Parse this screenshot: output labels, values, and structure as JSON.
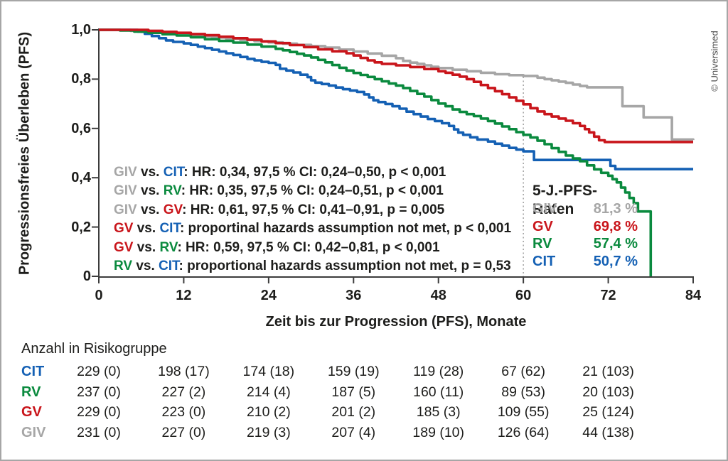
{
  "copyright": "© Universimed",
  "colors": {
    "giv": "#a6a6a6",
    "gv": "#c9151b",
    "rv": "#0a8a3e",
    "cit": "#1460b4",
    "axis": "#3c3c3c",
    "text": "#1d1d1b",
    "dotted_line": "#999999"
  },
  "stats": [
    {
      "g1": "GIV",
      "c1": "giv",
      "g2": "CIT",
      "c2": "cit",
      "rest": "HR: 0,34, 97,5 % CI: 0,24–0,50, p < 0,001"
    },
    {
      "g1": "GIV",
      "c1": "giv",
      "g2": "RV",
      "c2": "rv",
      "rest": "HR: 0,35, 97,5 % CI: 0,24–0,51, p < 0,001"
    },
    {
      "g1": "GIV",
      "c1": "giv",
      "g2": "GV",
      "c2": "gv",
      "rest": "HR: 0,61, 97,5 % CI: 0,41–0,91, p = 0,005"
    },
    {
      "g1": "GV",
      "c1": "gv",
      "g2": "CIT",
      "c2": "cit",
      "rest": "proportinal hazards assumption not met, p < 0,001"
    },
    {
      "g1": "GV",
      "c1": "gv",
      "g2": "RV",
      "c2": "rv",
      "rest": "HR: 0,59, 97,5 % CI: 0,42–0,81, p < 0,001"
    },
    {
      "g1": "RV",
      "c1": "rv",
      "g2": "CIT",
      "c2": "cit",
      "rest": "proportional hazards assumption not met, p = 0,53"
    }
  ],
  "five_year_rates": {
    "title": "5-J.-PFS-Raten",
    "rows": [
      {
        "label": "GIV",
        "color": "giv",
        "value": "81,3 %"
      },
      {
        "label": "GV",
        "color": "gv",
        "value": "69,8 %"
      },
      {
        "label": "RV",
        "color": "rv",
        "value": "57,4 %"
      },
      {
        "label": "CIT",
        "color": "cit",
        "value": "50,7 %"
      }
    ]
  },
  "risk_table": {
    "title": "Anzahl in Risikogruppe",
    "rows": [
      {
        "label": "CIT",
        "color": "cit",
        "values": [
          "229 (0)",
          "198 (17)",
          "174 (18)",
          "159 (19)",
          "119 (28)",
          "67 (62)",
          "21 (103)"
        ]
      },
      {
        "label": "RV",
        "color": "rv",
        "values": [
          "237 (0)",
          "227 (2)",
          "214 (4)",
          "187 (5)",
          "160 (11)",
          "89 (53)",
          "20 (103)"
        ]
      },
      {
        "label": "GV",
        "color": "gv",
        "values": [
          "229 (0)",
          "223 (0)",
          "210 (2)",
          "201 (2)",
          "185 (3)",
          "109 (55)",
          "25 (124)"
        ]
      },
      {
        "label": "GIV",
        "color": "giv",
        "values": [
          "231 (0)",
          "227 (0)",
          "219 (3)",
          "207 (4)",
          "189 (10)",
          "126 (64)",
          "44 (138)"
        ]
      }
    ]
  },
  "chart_data": {
    "type": "line",
    "subtype": "kaplan-meier-step",
    "title": "",
    "xlabel": "Zeit bis zur Progression (PFS), Monate",
    "ylabel": "Progressionsfreies Überleben (PFS)",
    "xlim": [
      0,
      84
    ],
    "ylim": [
      0,
      1.0
    ],
    "grid": false,
    "reference_line_x": 60,
    "xticks": [
      {
        "m": 0,
        "label": "0"
      },
      {
        "m": 12,
        "label": "12"
      },
      {
        "m": 24,
        "label": "24"
      },
      {
        "m": 36,
        "label": "36"
      },
      {
        "m": 48,
        "label": "48"
      },
      {
        "m": 60,
        "label": "60"
      },
      {
        "m": 72,
        "label": "72"
      },
      {
        "m": 84,
        "label": "84"
      }
    ],
    "yticks": [
      {
        "v": 0.0,
        "label": "0"
      },
      {
        "v": 0.2,
        "label": "0,2"
      },
      {
        "v": 0.4,
        "label": "0,4"
      },
      {
        "v": 0.6,
        "label": "0,6"
      },
      {
        "v": 0.8,
        "label": "0,8"
      },
      {
        "v": 1.0,
        "label": "1,0"
      }
    ],
    "series": [
      {
        "name": "GIV",
        "color": "giv",
        "end_month": 84,
        "points": [
          [
            0,
            1.0
          ],
          [
            4.5,
            0.996
          ],
          [
            6,
            0.992
          ],
          [
            8,
            0.988
          ],
          [
            10,
            0.983
          ],
          [
            12,
            0.979
          ],
          [
            14,
            0.974
          ],
          [
            16,
            0.969
          ],
          [
            18,
            0.964
          ],
          [
            20,
            0.959
          ],
          [
            22,
            0.954
          ],
          [
            24,
            0.949
          ],
          [
            26,
            0.944
          ],
          [
            28,
            0.939
          ],
          [
            30,
            0.934
          ],
          [
            32,
            0.928
          ],
          [
            34,
            0.92
          ],
          [
            36,
            0.912
          ],
          [
            38,
            0.904
          ],
          [
            40,
            0.895
          ],
          [
            42,
            0.885
          ],
          [
            43,
            0.874
          ],
          [
            44,
            0.867
          ],
          [
            45,
            0.862
          ],
          [
            46,
            0.856
          ],
          [
            47,
            0.85
          ],
          [
            48,
            0.845
          ],
          [
            50,
            0.838
          ],
          [
            52,
            0.832
          ],
          [
            54,
            0.826
          ],
          [
            56,
            0.82
          ],
          [
            58,
            0.816
          ],
          [
            60,
            0.813
          ],
          [
            62,
            0.806
          ],
          [
            63,
            0.8
          ],
          [
            64,
            0.795
          ],
          [
            65,
            0.79
          ],
          [
            66,
            0.785
          ],
          [
            67,
            0.778
          ],
          [
            68,
            0.772
          ],
          [
            69,
            0.767
          ],
          [
            74,
            0.69
          ],
          [
            77,
            0.645
          ],
          [
            81,
            0.555
          ],
          [
            84,
            0.553
          ]
        ]
      },
      {
        "name": "CIT",
        "color": "cit",
        "end_month": 84,
        "points": [
          [
            0,
            1.0
          ],
          [
            5.5,
            0.993
          ],
          [
            6.5,
            0.984
          ],
          [
            7.5,
            0.975
          ],
          [
            8.5,
            0.966
          ],
          [
            9.5,
            0.957
          ],
          [
            10.5,
            0.951
          ],
          [
            12,
            0.945
          ],
          [
            13,
            0.939
          ],
          [
            14,
            0.932
          ],
          [
            15,
            0.926
          ],
          [
            16,
            0.919
          ],
          [
            17,
            0.912
          ],
          [
            18,
            0.905
          ],
          [
            19,
            0.898
          ],
          [
            20,
            0.89
          ],
          [
            21,
            0.882
          ],
          [
            22,
            0.876
          ],
          [
            23,
            0.87
          ],
          [
            24,
            0.866
          ],
          [
            25,
            0.858
          ],
          [
            25.6,
            0.842
          ],
          [
            26.5,
            0.835
          ],
          [
            27.5,
            0.827
          ],
          [
            28.5,
            0.818
          ],
          [
            29.5,
            0.808
          ],
          [
            30,
            0.795
          ],
          [
            30.6,
            0.786
          ],
          [
            31.5,
            0.78
          ],
          [
            32.5,
            0.774
          ],
          [
            33.5,
            0.766
          ],
          [
            34.5,
            0.759
          ],
          [
            35.5,
            0.754
          ],
          [
            36.5,
            0.748
          ],
          [
            37.5,
            0.738
          ],
          [
            38.2,
            0.726
          ],
          [
            38.8,
            0.714
          ],
          [
            39.5,
            0.707
          ],
          [
            40.5,
            0.699
          ],
          [
            41.5,
            0.69
          ],
          [
            42.5,
            0.68
          ],
          [
            43.5,
            0.668
          ],
          [
            44.5,
            0.658
          ],
          [
            45.5,
            0.648
          ],
          [
            46.5,
            0.638
          ],
          [
            47.5,
            0.63
          ],
          [
            48.5,
            0.621
          ],
          [
            49.5,
            0.61
          ],
          [
            50.2,
            0.596
          ],
          [
            50.8,
            0.583
          ],
          [
            51.5,
            0.574
          ],
          [
            52.5,
            0.564
          ],
          [
            53.5,
            0.555
          ],
          [
            55,
            0.547
          ],
          [
            56,
            0.538
          ],
          [
            57,
            0.53
          ],
          [
            58,
            0.521
          ],
          [
            59,
            0.514
          ],
          [
            60,
            0.507
          ],
          [
            61.5,
            0.472
          ],
          [
            72.3,
            0.448
          ],
          [
            73,
            0.435
          ],
          [
            84,
            0.435
          ]
        ]
      },
      {
        "name": "RV",
        "color": "rv",
        "end_month": null,
        "points": [
          [
            0,
            1.0
          ],
          [
            3,
            0.997
          ],
          [
            5,
            0.993
          ],
          [
            7,
            0.988
          ],
          [
            9,
            0.982
          ],
          [
            11,
            0.977
          ],
          [
            13,
            0.97
          ],
          [
            15,
            0.962
          ],
          [
            17,
            0.955
          ],
          [
            19,
            0.948
          ],
          [
            21,
            0.94
          ],
          [
            23,
            0.932
          ],
          [
            25,
            0.923
          ],
          [
            26,
            0.917
          ],
          [
            27,
            0.91
          ],
          [
            28,
            0.903
          ],
          [
            29,
            0.896
          ],
          [
            30,
            0.888
          ],
          [
            31,
            0.878
          ],
          [
            32,
            0.868
          ],
          [
            33,
            0.857
          ],
          [
            34,
            0.846
          ],
          [
            35,
            0.835
          ],
          [
            36,
            0.825
          ],
          [
            37,
            0.817
          ],
          [
            38,
            0.809
          ],
          [
            39,
            0.8
          ],
          [
            40,
            0.791
          ],
          [
            41,
            0.782
          ],
          [
            42,
            0.774
          ],
          [
            43,
            0.764
          ],
          [
            44,
            0.752
          ],
          [
            45,
            0.74
          ],
          [
            46,
            0.729
          ],
          [
            47,
            0.715
          ],
          [
            48,
            0.701
          ],
          [
            49,
            0.69
          ],
          [
            50,
            0.677
          ],
          [
            51,
            0.667
          ],
          [
            52,
            0.658
          ],
          [
            53,
            0.65
          ],
          [
            54,
            0.64
          ],
          [
            55,
            0.63
          ],
          [
            56,
            0.62
          ],
          [
            57,
            0.608
          ],
          [
            58,
            0.597
          ],
          [
            59,
            0.585
          ],
          [
            60,
            0.574
          ],
          [
            61,
            0.563
          ],
          [
            62,
            0.55
          ],
          [
            63,
            0.536
          ],
          [
            64,
            0.52
          ],
          [
            65,
            0.505
          ],
          [
            66,
            0.49
          ],
          [
            67,
            0.478
          ],
          [
            68,
            0.467
          ],
          [
            69,
            0.45
          ],
          [
            70,
            0.434
          ],
          [
            71,
            0.42
          ],
          [
            72,
            0.408
          ],
          [
            72.6,
            0.394
          ],
          [
            73.2,
            0.381
          ],
          [
            73.8,
            0.36
          ],
          [
            74.4,
            0.34
          ],
          [
            75,
            0.318
          ],
          [
            75.6,
            0.297
          ],
          [
            76.2,
            0.263
          ],
          [
            78,
            0.0
          ]
        ]
      },
      {
        "name": "GV",
        "color": "gv",
        "end_month": 84,
        "points": [
          [
            0,
            1.0
          ],
          [
            7,
            0.996
          ],
          [
            9,
            0.992
          ],
          [
            11,
            0.988
          ],
          [
            13,
            0.983
          ],
          [
            15,
            0.978
          ],
          [
            17,
            0.972
          ],
          [
            19,
            0.966
          ],
          [
            21,
            0.96
          ],
          [
            23,
            0.953
          ],
          [
            25,
            0.946
          ],
          [
            27,
            0.938
          ],
          [
            29,
            0.93
          ],
          [
            31,
            0.921
          ],
          [
            33,
            0.913
          ],
          [
            35,
            0.905
          ],
          [
            36,
            0.896
          ],
          [
            37,
            0.886
          ],
          [
            38,
            0.876
          ],
          [
            39,
            0.868
          ],
          [
            40,
            0.862
          ],
          [
            42,
            0.856
          ],
          [
            44,
            0.849
          ],
          [
            46,
            0.841
          ],
          [
            48,
            0.832
          ],
          [
            49,
            0.826
          ],
          [
            50,
            0.818
          ],
          [
            51,
            0.81
          ],
          [
            52,
            0.8
          ],
          [
            53,
            0.789
          ],
          [
            54,
            0.776
          ],
          [
            55,
            0.764
          ],
          [
            56,
            0.751
          ],
          [
            57,
            0.739
          ],
          [
            58,
            0.726
          ],
          [
            59,
            0.712
          ],
          [
            60,
            0.698
          ],
          [
            61,
            0.682
          ],
          [
            62,
            0.669
          ],
          [
            63,
            0.658
          ],
          [
            64,
            0.648
          ],
          [
            65,
            0.64
          ],
          [
            66,
            0.631
          ],
          [
            67,
            0.621
          ],
          [
            68,
            0.61
          ],
          [
            68.7,
            0.597
          ],
          [
            69.3,
            0.584
          ],
          [
            70,
            0.567
          ],
          [
            70.7,
            0.552
          ],
          [
            71.5,
            0.545
          ],
          [
            84,
            0.545
          ]
        ]
      }
    ]
  }
}
